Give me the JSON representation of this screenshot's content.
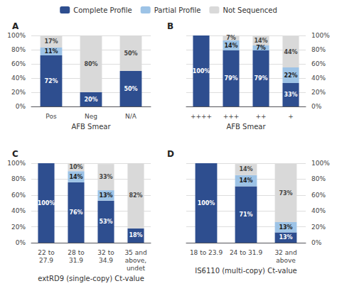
{
  "chart_data": [
    {
      "type": "bar",
      "title": "A",
      "x_label": "AFB Smear",
      "categories": [
        "Pos",
        "Neg",
        "N/A"
      ],
      "series": [
        {
          "name": "Complete Profile",
          "color": "#2E4E8F",
          "values": [
            72,
            20,
            50
          ],
          "value_labels": [
            "72%",
            "20%",
            "50%"
          ]
        },
        {
          "name": "Partial Profile",
          "color": "#9DC3E6",
          "values": [
            11,
            0,
            0
          ],
          "value_labels": [
            "11%",
            null,
            null
          ]
        },
        {
          "name": "Not Sequenced",
          "color": "#D9D9D9",
          "values": [
            17,
            80,
            50
          ],
          "value_labels": [
            "17%",
            "80%",
            "50%"
          ]
        }
      ],
      "stacked": true,
      "data_labels": true,
      "grid": true,
      "legend": "top",
      "ylim": [
        0,
        100
      ],
      "yticks": [
        {
          "value": 0,
          "label": "0%"
        },
        {
          "value": 20,
          "label": "20%"
        },
        {
          "value": 40,
          "label": "40%"
        },
        {
          "value": 60,
          "label": "60%"
        },
        {
          "value": 80,
          "label": "80%"
        },
        {
          "value": 100,
          "label": "100%"
        }
      ]
    },
    {
      "type": "bar",
      "title": "B",
      "x_label": "AFB Smear",
      "categories": [
        "++++",
        "+++",
        "++",
        "+"
      ],
      "series": [
        {
          "name": "Complete Profile",
          "color": "#2E4E8F",
          "values": [
            100,
            79,
            79,
            33
          ],
          "value_labels": [
            "100%",
            "79%",
            "79%",
            "33%"
          ]
        },
        {
          "name": "Partial Profile",
          "color": "#9DC3E6",
          "values": [
            0,
            14,
            7,
            22
          ],
          "value_labels": [
            null,
            "14%",
            "7%",
            "22%"
          ]
        },
        {
          "name": "Not Sequenced",
          "color": "#D9D9D9",
          "values": [
            0,
            7,
            14,
            44
          ],
          "value_labels": [
            null,
            "7%",
            "14%",
            "44%"
          ]
        }
      ],
      "stacked": true,
      "data_labels": true,
      "grid": true,
      "legend": "top",
      "ylim": [
        0,
        100
      ],
      "yticks": [
        {
          "value": 0,
          "label": "0%"
        },
        {
          "value": 20,
          "label": "20%"
        },
        {
          "value": 40,
          "label": "40%"
        },
        {
          "value": 60,
          "label": "60%"
        },
        {
          "value": 80,
          "label": "80%"
        },
        {
          "value": 100,
          "label": "100%"
        }
      ]
    },
    {
      "type": "bar",
      "title": "C",
      "x_label": "extRD9 (single-copy) Ct-value",
      "categories": [
        "22 to\n27.9",
        "28 to\n31.9",
        "32 to\n34.9",
        "35 and\nabove,\nundet"
      ],
      "series": [
        {
          "name": "Complete Profile",
          "color": "#2E4E8F",
          "values": [
            100,
            76,
            53,
            18
          ],
          "value_labels": [
            "100%",
            "76%",
            "53%",
            "18%"
          ]
        },
        {
          "name": "Partial Profile",
          "color": "#9DC3E6",
          "values": [
            0,
            14,
            13,
            0
          ],
          "value_labels": [
            null,
            "14%",
            "13%",
            null
          ]
        },
        {
          "name": "Not Sequenced",
          "color": "#D9D9D9",
          "values": [
            0,
            10,
            33,
            82
          ],
          "value_labels": [
            null,
            "10%",
            "33%",
            "82%"
          ]
        }
      ],
      "stacked": true,
      "data_labels": true,
      "grid": true,
      "legend": "top",
      "ylim": [
        0,
        100
      ],
      "yticks": [
        {
          "value": 0,
          "label": "0%"
        },
        {
          "value": 20,
          "label": "20%"
        },
        {
          "value": 40,
          "label": "40%"
        },
        {
          "value": 60,
          "label": "60%"
        },
        {
          "value": 80,
          "label": "80%"
        },
        {
          "value": 100,
          "label": "100%"
        }
      ]
    },
    {
      "type": "bar",
      "title": "D",
      "x_label": "IS6110 (multi-copy) Ct-value",
      "categories": [
        "18 to 23.9",
        "24 to 31.9",
        "32 and\nabove"
      ],
      "series": [
        {
          "name": "Complete Profile",
          "color": "#2E4E8F",
          "values": [
            100,
            71,
            13
          ],
          "value_labels": [
            "100%",
            "71%",
            "13%"
          ]
        },
        {
          "name": "Partial Profile",
          "color": "#9DC3E6",
          "values": [
            0,
            14,
            13
          ],
          "value_labels": [
            null,
            "14%",
            "13%"
          ]
        },
        {
          "name": "Not Sequenced",
          "color": "#D9D9D9",
          "values": [
            0,
            14,
            73
          ],
          "value_labels": [
            null,
            "14%",
            "73%"
          ]
        }
      ],
      "stacked": true,
      "data_labels": true,
      "grid": true,
      "legend": "top",
      "ylim": [
        0,
        100
      ],
      "yticks": [
        {
          "value": 0,
          "label": "0%"
        },
        {
          "value": 20,
          "label": "20%"
        },
        {
          "value": 40,
          "label": "40%"
        },
        {
          "value": 60,
          "label": "60%"
        },
        {
          "value": 80,
          "label": "80%"
        },
        {
          "value": 100,
          "label": "100%"
        }
      ]
    }
  ]
}
